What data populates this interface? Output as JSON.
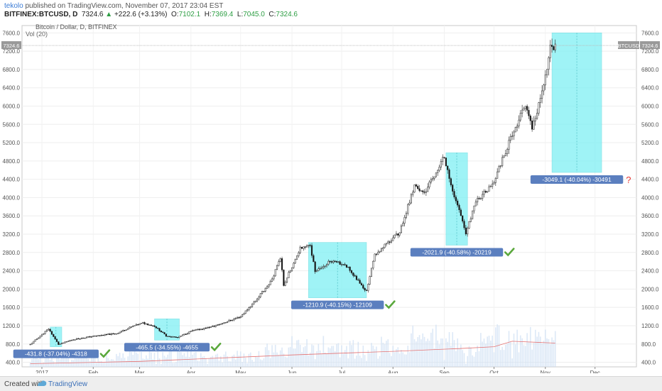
{
  "header": {
    "author": "tekolo",
    "published_text": "published on TradingView.com, November 07, 2017 23:04 EST",
    "symbol_line": "BITFINEX:BTCUSD, D",
    "last_price": "7324.6",
    "change": "+222.6 (+3.13%)",
    "open": "7102.1",
    "high": "7369.4",
    "low": "7045.0",
    "close": "7324.6"
  },
  "footer": {
    "created_with": "Created with",
    "brand": "TradingView"
  },
  "colors": {
    "candle_up": "#ffffff",
    "candle_down": "#111111",
    "box_fill": "#7ff0f4",
    "label_bg": "#5b7fbf",
    "check": "#5aa83c",
    "question": "#e53935",
    "volume_ma": "#e57373",
    "volume_bar": "#cfe0f3",
    "last_price_badge": "#999999"
  },
  "chart_data": {
    "type": "candlestick",
    "title": "Bitcoin / Dollar, D, BITFINEX",
    "indicator": "Vol (20)",
    "price_badge": "7324.6",
    "symbol_badge": "BTCUSD",
    "ylim": [
      300,
      7760
    ],
    "y_ticks": [
      "400.0",
      "800.0",
      "1200.0",
      "1600.0",
      "2000.0",
      "2400.0",
      "2800.0",
      "3200.0",
      "3600.0",
      "4000.0",
      "4400.0",
      "4800.0",
      "5200.0",
      "5600.0",
      "6000.0",
      "6400.0",
      "6800.0",
      "7200.0",
      "7600.0"
    ],
    "x_ticks": [
      "2017",
      "Feb",
      "Mar",
      "Apr",
      "May",
      "Jun",
      "Jul",
      "Aug",
      "Sep",
      "Oct",
      "Nov",
      "Dec"
    ],
    "price_path": [
      [
        "2016-12-25",
        790
      ],
      [
        "2017-01-05",
        1130
      ],
      [
        "2017-01-11",
        790
      ],
      [
        "2017-01-20",
        900
      ],
      [
        "2017-02-01",
        970
      ],
      [
        "2017-02-15",
        1030
      ],
      [
        "2017-02-25",
        1190
      ],
      [
        "2017-03-03",
        1260
      ],
      [
        "2017-03-10",
        1190
      ],
      [
        "2017-03-17",
        980
      ],
      [
        "2017-03-24",
        940
      ],
      [
        "2017-04-01",
        1080
      ],
      [
        "2017-04-15",
        1190
      ],
      [
        "2017-05-01",
        1400
      ],
      [
        "2017-05-10",
        1750
      ],
      [
        "2017-05-20",
        2200
      ],
      [
        "2017-05-25",
        2700
      ],
      [
        "2017-05-27",
        2100
      ],
      [
        "2017-06-06",
        2900
      ],
      [
        "2017-06-12",
        2950
      ],
      [
        "2017-06-15",
        2400
      ],
      [
        "2017-06-24",
        2600
      ],
      [
        "2017-07-03",
        2550
      ],
      [
        "2017-07-16",
        1950
      ],
      [
        "2017-07-21",
        2750
      ],
      [
        "2017-08-05",
        3250
      ],
      [
        "2017-08-14",
        4250
      ],
      [
        "2017-08-20",
        4100
      ],
      [
        "2017-09-01",
        4900
      ],
      [
        "2017-09-05",
        4300
      ],
      [
        "2017-09-14",
        3200
      ],
      [
        "2017-09-20",
        3900
      ],
      [
        "2017-10-01",
        4350
      ],
      [
        "2017-10-12",
        5400
      ],
      [
        "2017-10-20",
        6000
      ],
      [
        "2017-10-24",
        5500
      ],
      [
        "2017-10-31",
        6450
      ],
      [
        "2017-11-04",
        7300
      ],
      [
        "2017-11-07",
        7324.6
      ]
    ],
    "volume_ma": [
      [
        "2016-12-25",
        370
      ],
      [
        "2017-03-01",
        420
      ],
      [
        "2017-06-01",
        560
      ],
      [
        "2017-08-01",
        640
      ],
      [
        "2017-09-10",
        700
      ],
      [
        "2017-10-01",
        740
      ],
      [
        "2017-10-12",
        860
      ],
      [
        "2017-11-07",
        820
      ]
    ],
    "annotations": [
      {
        "start": "2017-01-06",
        "end": "2017-01-13",
        "high": 1170,
        "low": 740,
        "label": "-431.8 (-37.04%) -4318",
        "mark": "check"
      },
      {
        "start": "2017-03-10",
        "end": "2017-03-25",
        "high": 1350,
        "low": 885,
        "label": "-465.5 (-34.55%) -4655",
        "mark": "check"
      },
      {
        "start": "2017-06-11",
        "end": "2017-07-16",
        "high": 3020,
        "low": 1810,
        "label": "-1210.9 (-40.15%) -12109",
        "mark": "check"
      },
      {
        "start": "2017-09-02",
        "end": "2017-09-15",
        "high": 4980,
        "low": 2960,
        "label": "-2021.9 (-40.58%) -20219",
        "mark": "check"
      },
      {
        "start": "2017-11-05",
        "end": "2017-12-05",
        "high": 7600,
        "low": 4550,
        "label": "-3049.1 (-40.04%) -30491",
        "mark": "question"
      }
    ]
  }
}
